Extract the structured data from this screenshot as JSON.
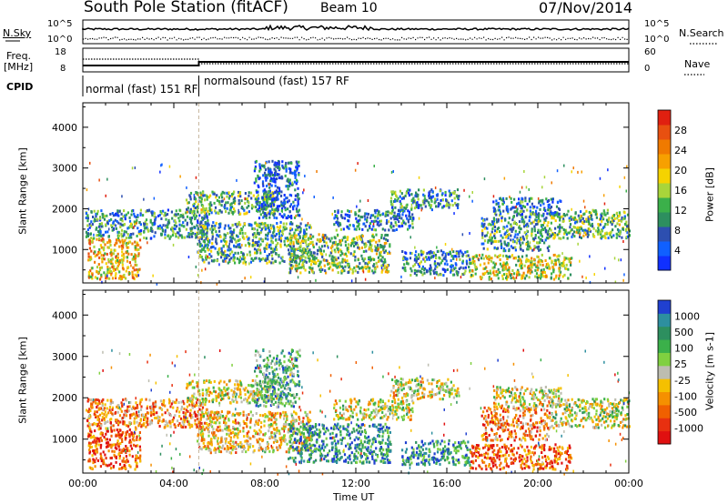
{
  "header": {
    "title": "South Pole Station (fitACF)",
    "beam": "Beam 10",
    "date": "07/Nov/2014"
  },
  "strip_panels": {
    "nsky": {
      "label": "N.Sky",
      "tick_top": "10^5",
      "tick_bottom": "10^0"
    },
    "nsearch": {
      "label": "N.Search",
      "tick_top": "10^5",
      "tick_bottom": "10^0"
    },
    "freq": {
      "label": "Freq.",
      "unit": "[MHz]",
      "tick_top": "18",
      "tick_bottom": "8"
    },
    "nave": {
      "label": "Nave",
      "tick_top": "60",
      "tick_bottom": "0"
    },
    "cpid": {
      "label": "CPID",
      "segments": [
        {
          "text": "normal (fast) 151 RF",
          "start_hour": 0,
          "end_hour": 5.1
        },
        {
          "text": "normalsound (fast) 157 RF",
          "start_hour": 5.1,
          "end_hour": 24
        }
      ]
    }
  },
  "x_axis": {
    "label": "Time UT",
    "ticks": [
      "00:00",
      "04:00",
      "08:00",
      "12:00",
      "16:00",
      "20:00",
      "00:00"
    ]
  },
  "chart_data": [
    {
      "type": "heatmap",
      "quantity": "Power",
      "xlabel": "Time UT",
      "ylabel": "Slant Range [km]",
      "xlim": [
        0,
        24
      ],
      "ylim": [
        180,
        4600
      ],
      "yticks": [
        1000,
        2000,
        3000,
        4000
      ],
      "colorbar": {
        "label": "Power [dB]",
        "ticks": [
          "4",
          "8",
          "12",
          "16",
          "20",
          "24",
          "28"
        ],
        "colors": [
          "#1030ff",
          "#1060ff",
          "#2d4fb0",
          "#2d8f5f",
          "#3bb04a",
          "#a8d53a",
          "#f5d300",
          "#f7a000",
          "#f07a00",
          "#e85010",
          "#e02010"
        ]
      },
      "echo_regions": [
        {
          "t0": 0.2,
          "t1": 2.5,
          "r0": 300,
          "r1": 1300,
          "level": 0.65
        },
        {
          "t0": 0.1,
          "t1": 5.5,
          "r0": 1300,
          "r1": 2000,
          "level": 0.3
        },
        {
          "t0": 4.5,
          "t1": 8.5,
          "r0": 1900,
          "r1": 2450,
          "level": 0.4
        },
        {
          "t0": 5.0,
          "t1": 10.0,
          "r0": 700,
          "r1": 1700,
          "level": 0.35
        },
        {
          "t0": 7.5,
          "t1": 9.5,
          "r0": 1800,
          "r1": 3200,
          "level": 0.2
        },
        {
          "t0": 9.0,
          "t1": 13.5,
          "r0": 450,
          "r1": 1400,
          "level": 0.45
        },
        {
          "t0": 11.0,
          "t1": 14.5,
          "r0": 1500,
          "r1": 2000,
          "level": 0.25
        },
        {
          "t0": 13.5,
          "t1": 16.5,
          "r0": 2000,
          "r1": 2500,
          "level": 0.3
        },
        {
          "t0": 14.0,
          "t1": 17.0,
          "r0": 400,
          "r1": 1000,
          "level": 0.3
        },
        {
          "t0": 17.0,
          "t1": 21.5,
          "r0": 300,
          "r1": 900,
          "level": 0.55
        },
        {
          "t0": 17.5,
          "t1": 20.5,
          "r0": 1000,
          "r1": 1800,
          "level": 0.35
        },
        {
          "t0": 18.0,
          "t1": 21.0,
          "r0": 1800,
          "r1": 2300,
          "level": 0.25
        },
        {
          "t0": 20.5,
          "t1": 24.0,
          "r0": 1300,
          "r1": 2000,
          "level": 0.4
        }
      ]
    },
    {
      "type": "heatmap",
      "quantity": "Velocity",
      "xlabel": "Time UT",
      "ylabel": "Slant Range [km]",
      "xlim": [
        0,
        24
      ],
      "ylim": [
        180,
        4600
      ],
      "yticks": [
        1000,
        2000,
        3000,
        4000
      ],
      "colorbar": {
        "label": "Velocity [m s-1]",
        "ticks": [
          "1000",
          "500",
          "100",
          "25",
          "-25",
          "-100",
          "-500",
          "-1000"
        ],
        "colors": [
          "#2040d0",
          "#2d8f9f",
          "#2d8f5f",
          "#3bb04a",
          "#80d040",
          "#bdbdb0",
          "#f5c000",
          "#f59000",
          "#f06000",
          "#e83010",
          "#e01010"
        ]
      },
      "echo_regions": [
        {
          "t0": 0.2,
          "t1": 2.5,
          "r0": 300,
          "r1": 1300,
          "level": 0.8
        },
        {
          "t0": 0.1,
          "t1": 5.5,
          "r0": 1300,
          "r1": 2000,
          "level": 0.7
        },
        {
          "t0": 4.5,
          "t1": 8.5,
          "r0": 1900,
          "r1": 2450,
          "level": 0.5
        },
        {
          "t0": 5.0,
          "t1": 10.0,
          "r0": 700,
          "r1": 1700,
          "level": 0.6
        },
        {
          "t0": 7.5,
          "t1": 9.5,
          "r0": 1800,
          "r1": 3200,
          "level": 0.3
        },
        {
          "t0": 9.0,
          "t1": 13.5,
          "r0": 450,
          "r1": 1400,
          "level": 0.2
        },
        {
          "t0": 11.0,
          "t1": 14.5,
          "r0": 1500,
          "r1": 2000,
          "level": 0.5
        },
        {
          "t0": 13.5,
          "t1": 16.5,
          "r0": 2000,
          "r1": 2500,
          "level": 0.5
        },
        {
          "t0": 14.0,
          "t1": 17.0,
          "r0": 400,
          "r1": 1000,
          "level": 0.2
        },
        {
          "t0": 17.0,
          "t1": 21.5,
          "r0": 300,
          "r1": 900,
          "level": 0.8
        },
        {
          "t0": 17.5,
          "t1": 20.5,
          "r0": 1000,
          "r1": 1800,
          "level": 0.7
        },
        {
          "t0": 18.0,
          "t1": 21.0,
          "r0": 1800,
          "r1": 2300,
          "level": 0.5
        },
        {
          "t0": 20.5,
          "t1": 24.0,
          "r0": 1300,
          "r1": 2000,
          "level": 0.5
        }
      ]
    }
  ]
}
